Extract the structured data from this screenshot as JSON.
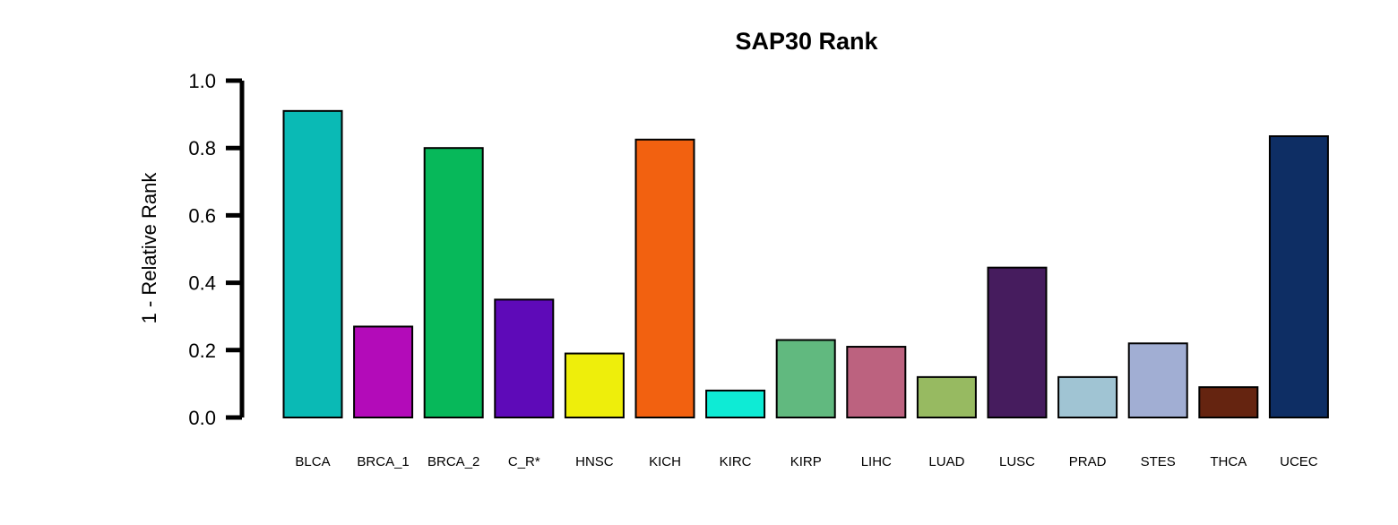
{
  "chart_data": {
    "type": "bar",
    "title": "SAP30 Rank",
    "ylabel": "1 - Relative Rank",
    "xlabel": "",
    "ylim": [
      0,
      1
    ],
    "yticks": [
      "0.0",
      "0.2",
      "0.4",
      "0.6",
      "0.8",
      "1.0"
    ],
    "categories": [
      "BLCA",
      "BRCA_1",
      "BRCA_2",
      "C_R*",
      "HNSC",
      "KICH",
      "KIRC",
      "KIRP",
      "LIHC",
      "LUAD",
      "LUSC",
      "PRAD",
      "STES",
      "THCA",
      "UCEC"
    ],
    "values": [
      0.91,
      0.27,
      0.8,
      0.35,
      0.19,
      0.825,
      0.08,
      0.23,
      0.21,
      0.12,
      0.445,
      0.12,
      0.22,
      0.09,
      0.835
    ],
    "colors": [
      "#0ABAB5",
      "#B30BB9",
      "#07B85A",
      "#5E0AB8",
      "#EEEE0B",
      "#F26110",
      "#0EEBD5",
      "#61B97F",
      "#BC627F",
      "#97BA61",
      "#461C5E",
      "#A0C4D3",
      "#A1AED3",
      "#652410",
      "#0E2E64"
    ],
    "grid": false,
    "legend": "none"
  }
}
